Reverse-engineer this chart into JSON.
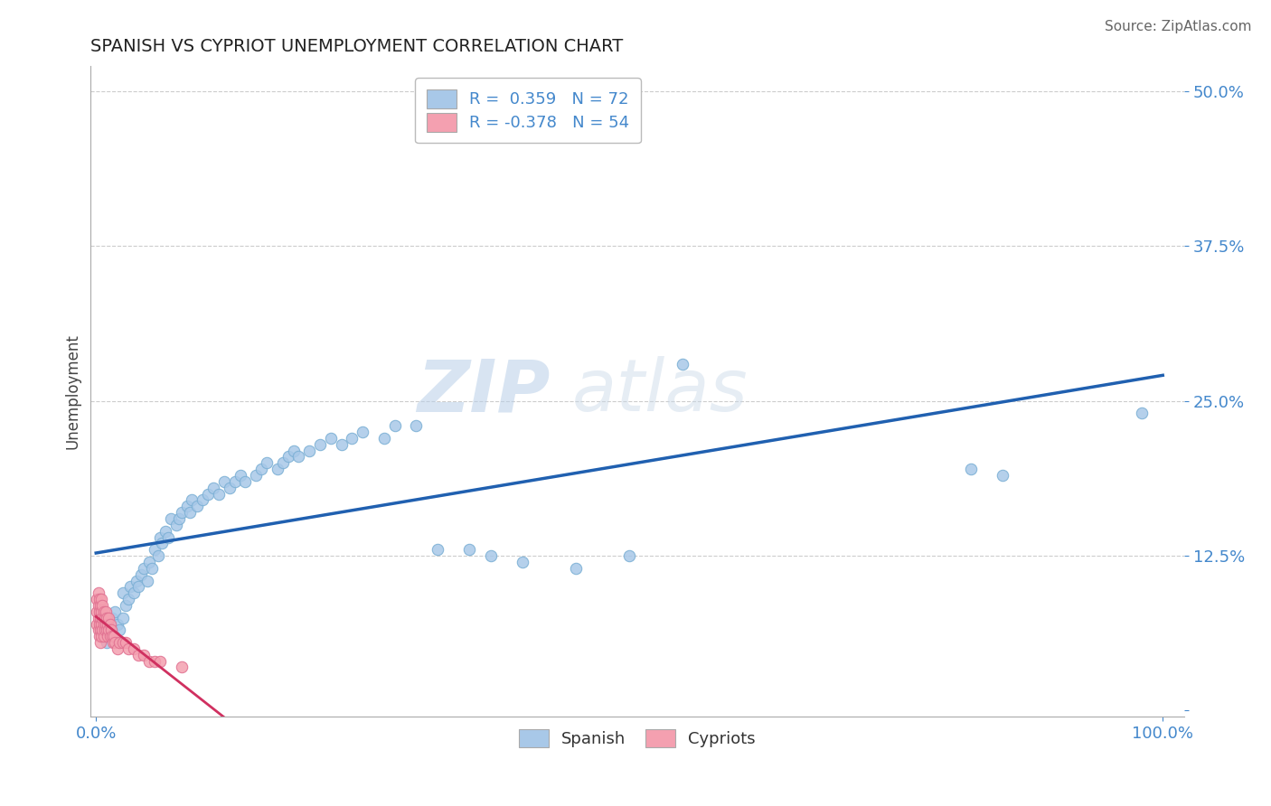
{
  "title": "SPANISH VS CYPRIOT UNEMPLOYMENT CORRELATION CHART",
  "source_text": "Source: ZipAtlas.com",
  "ylabel": "Unemployment",
  "watermark_zip": "ZIP",
  "watermark_atlas": "atlas",
  "blue_color": "#a8c8e8",
  "blue_color_edge": "#7aafd4",
  "pink_color": "#f4a0b0",
  "pink_color_edge": "#e07090",
  "blue_line_color": "#2060b0",
  "pink_line_color": "#d03060",
  "legend_blue_label": "R =  0.359   N = 72",
  "legend_pink_label": "R = -0.378   N = 54",
  "spanish_x": [
    0.005,
    0.008,
    0.01,
    0.012,
    0.015,
    0.015,
    0.018,
    0.02,
    0.022,
    0.025,
    0.025,
    0.028,
    0.03,
    0.032,
    0.035,
    0.038,
    0.04,
    0.042,
    0.045,
    0.048,
    0.05,
    0.052,
    0.055,
    0.058,
    0.06,
    0.062,
    0.065,
    0.068,
    0.07,
    0.075,
    0.078,
    0.08,
    0.085,
    0.088,
    0.09,
    0.095,
    0.1,
    0.105,
    0.11,
    0.115,
    0.12,
    0.125,
    0.13,
    0.135,
    0.14,
    0.15,
    0.155,
    0.16,
    0.17,
    0.175,
    0.18,
    0.185,
    0.19,
    0.2,
    0.21,
    0.22,
    0.23,
    0.24,
    0.25,
    0.27,
    0.28,
    0.3,
    0.32,
    0.35,
    0.37,
    0.4,
    0.45,
    0.5,
    0.55,
    0.82,
    0.85,
    0.98
  ],
  "spanish_y": [
    0.07,
    0.06,
    0.055,
    0.065,
    0.075,
    0.06,
    0.08,
    0.07,
    0.065,
    0.075,
    0.095,
    0.085,
    0.09,
    0.1,
    0.095,
    0.105,
    0.1,
    0.11,
    0.115,
    0.105,
    0.12,
    0.115,
    0.13,
    0.125,
    0.14,
    0.135,
    0.145,
    0.14,
    0.155,
    0.15,
    0.155,
    0.16,
    0.165,
    0.16,
    0.17,
    0.165,
    0.17,
    0.175,
    0.18,
    0.175,
    0.185,
    0.18,
    0.185,
    0.19,
    0.185,
    0.19,
    0.195,
    0.2,
    0.195,
    0.2,
    0.205,
    0.21,
    0.205,
    0.21,
    0.215,
    0.22,
    0.215,
    0.22,
    0.225,
    0.22,
    0.23,
    0.23,
    0.13,
    0.13,
    0.125,
    0.12,
    0.115,
    0.125,
    0.28,
    0.195,
    0.19,
    0.24
  ],
  "cypriot_x": [
    0.001,
    0.001,
    0.001,
    0.002,
    0.002,
    0.002,
    0.002,
    0.003,
    0.003,
    0.003,
    0.003,
    0.004,
    0.004,
    0.004,
    0.004,
    0.005,
    0.005,
    0.005,
    0.005,
    0.006,
    0.006,
    0.006,
    0.007,
    0.007,
    0.007,
    0.008,
    0.008,
    0.009,
    0.009,
    0.01,
    0.01,
    0.011,
    0.011,
    0.012,
    0.012,
    0.013,
    0.013,
    0.014,
    0.015,
    0.016,
    0.017,
    0.018,
    0.02,
    0.022,
    0.025,
    0.028,
    0.03,
    0.035,
    0.04,
    0.045,
    0.05,
    0.055,
    0.06,
    0.08
  ],
  "cypriot_y": [
    0.08,
    0.09,
    0.07,
    0.075,
    0.085,
    0.065,
    0.095,
    0.08,
    0.07,
    0.09,
    0.06,
    0.075,
    0.085,
    0.065,
    0.055,
    0.08,
    0.07,
    0.09,
    0.06,
    0.075,
    0.065,
    0.085,
    0.07,
    0.08,
    0.06,
    0.075,
    0.065,
    0.07,
    0.08,
    0.065,
    0.075,
    0.06,
    0.07,
    0.065,
    0.075,
    0.06,
    0.07,
    0.065,
    0.06,
    0.055,
    0.06,
    0.055,
    0.05,
    0.055,
    0.055,
    0.055,
    0.05,
    0.05,
    0.045,
    0.045,
    0.04,
    0.04,
    0.04,
    0.035
  ],
  "xlim": [
    -0.005,
    1.02
  ],
  "ylim": [
    -0.005,
    0.52
  ],
  "yticks": [
    0.0,
    0.125,
    0.25,
    0.375,
    0.5
  ],
  "ytick_labels": [
    "",
    "12.5%",
    "25.0%",
    "37.5%",
    "50.0%"
  ],
  "xtick_positions": [
    0.0,
    1.0
  ],
  "xtick_labels": [
    "0.0%",
    "100.0%"
  ],
  "tick_color": "#4488cc",
  "title_fontsize": 14,
  "axis_label_fontsize": 12,
  "tick_fontsize": 13,
  "source_fontsize": 11,
  "dot_size": 80
}
